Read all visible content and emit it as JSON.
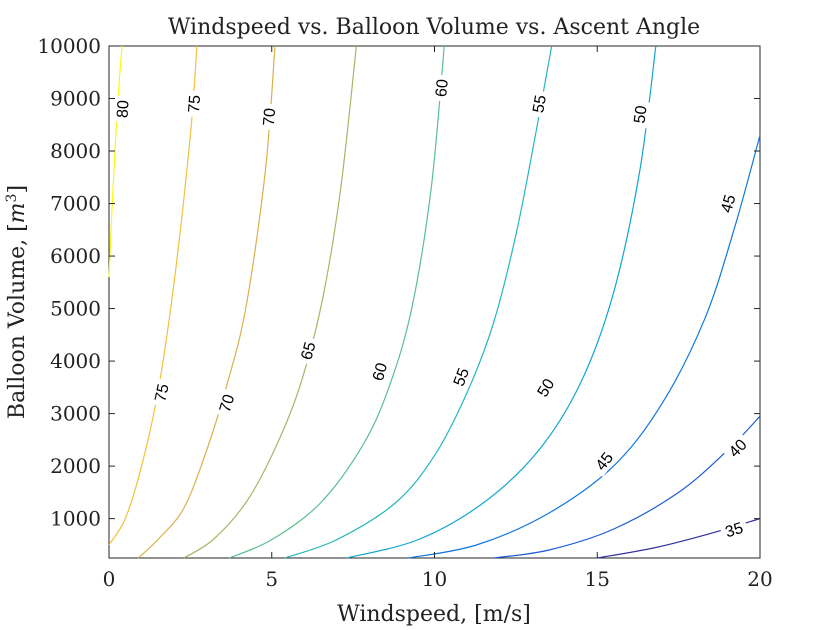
{
  "chart_data": {
    "type": "line",
    "subtype": "contour",
    "title": "Windspeed vs. Balloon Volume vs. Ascent Angle",
    "xlabel": "Windspeed, [m/s]",
    "ylabel_main": "Balloon Volume, [",
    "ylabel_italic": "m",
    "ylabel_sup": "3",
    "ylabel_close": "]",
    "xlim": [
      0,
      20
    ],
    "ylim": [
      250,
      10000
    ],
    "xticks": [
      0,
      5,
      10,
      15,
      20
    ],
    "yticks": [
      1000,
      2000,
      3000,
      4000,
      5000,
      6000,
      7000,
      8000,
      9000,
      10000
    ],
    "grid": false,
    "colormap": "parula",
    "series": [
      {
        "name": "80",
        "color": "#f9fb0e",
        "x": [
          0.0,
          0.1,
          0.2,
          0.3,
          0.4
        ],
        "y": [
          5600,
          7000,
          8200,
          9200,
          10000
        ],
        "labels": [
          {
            "text": "80",
            "x": 0.4,
            "y": 8800
          }
        ]
      },
      {
        "name": "75",
        "color": "#f1c23c",
        "x": [
          0.0,
          0.5,
          1.0,
          1.5,
          2.0,
          2.5,
          2.7
        ],
        "y": [
          500,
          1000,
          2000,
          3400,
          5500,
          8300,
          10000
        ],
        "labels": [
          {
            "text": "75",
            "x": 1.6,
            "y": 3400
          },
          {
            "text": "75",
            "x": 2.6,
            "y": 8900
          }
        ]
      },
      {
        "name": "70",
        "color": "#dbaf4a",
        "x": [
          0.9,
          1.5,
          2.3,
          3.0,
          3.6,
          4.2,
          4.8,
          5.1
        ],
        "y": [
          250,
          600,
          1200,
          2300,
          3500,
          5000,
          7600,
          10000
        ],
        "labels": [
          {
            "text": "70",
            "x": 3.6,
            "y": 3200
          },
          {
            "text": "70",
            "x": 4.9,
            "y": 8650
          }
        ]
      },
      {
        "name": "65",
        "color": "#a9b465",
        "x": [
          2.3,
          3.2,
          4.2,
          5.0,
          5.8,
          6.5,
          7.1,
          7.6
        ],
        "y": [
          250,
          600,
          1300,
          2200,
          3400,
          5000,
          7200,
          10000
        ],
        "labels": [
          {
            "text": "65",
            "x": 6.1,
            "y": 4200
          }
        ]
      },
      {
        "name": "60",
        "color": "#5abf8e",
        "x": [
          3.7,
          5.0,
          6.5,
          7.8,
          8.6,
          9.3,
          9.9,
          10.3
        ],
        "y": [
          250,
          600,
          1300,
          2400,
          3500,
          5000,
          7300,
          10000
        ],
        "labels": [
          {
            "text": "60",
            "x": 8.3,
            "y": 3800
          },
          {
            "text": "60",
            "x": 10.2,
            "y": 9200
          }
        ]
      },
      {
        "name": "55",
        "color": "#24b6be",
        "x": [
          5.4,
          7.0,
          8.8,
          10.0,
          11.0,
          11.8,
          12.5,
          13.1,
          13.6
        ],
        "y": [
          250,
          600,
          1300,
          2200,
          3400,
          4700,
          6400,
          8300,
          10000
        ],
        "labels": [
          {
            "text": "55",
            "x": 10.8,
            "y": 3700
          },
          {
            "text": "55",
            "x": 13.2,
            "y": 8900
          }
        ]
      },
      {
        "name": "50",
        "color": "#12a5cf",
        "x": [
          7.3,
          9.5,
          11.5,
          13.2,
          14.5,
          15.5,
          16.3,
          16.8
        ],
        "y": [
          250,
          600,
          1300,
          2300,
          3600,
          5300,
          7600,
          10000
        ],
        "labels": [
          {
            "text": "50",
            "x": 13.4,
            "y": 3500
          },
          {
            "text": "50",
            "x": 16.3,
            "y": 8700
          }
        ]
      },
      {
        "name": "45",
        "color": "#0f77dd",
        "x": [
          9.2,
          11.3,
          13.5,
          15.5,
          17.0,
          18.3,
          19.2,
          20.0
        ],
        "y": [
          250,
          500,
          1100,
          2000,
          3200,
          4800,
          6500,
          8300
        ],
        "labels": [
          {
            "text": "45",
            "x": 15.2,
            "y": 2100
          },
          {
            "text": "45",
            "x": 19.0,
            "y": 7000
          }
        ]
      },
      {
        "name": "40",
        "color": "#1b5bd9",
        "x": [
          11.8,
          13.5,
          15.5,
          17.5,
          19.0,
          20.0
        ],
        "y": [
          250,
          400,
          800,
          1500,
          2300,
          2950
        ],
        "labels": [
          {
            "text": "40",
            "x": 19.3,
            "y": 2350
          }
        ]
      },
      {
        "name": "35",
        "color": "#2f2f9e",
        "x": [
          15.0,
          16.8,
          18.5,
          20.0
        ],
        "y": [
          250,
          450,
          720,
          1000
        ],
        "labels": [
          {
            "text": "35",
            "x": 19.2,
            "y": 800
          }
        ]
      }
    ]
  }
}
